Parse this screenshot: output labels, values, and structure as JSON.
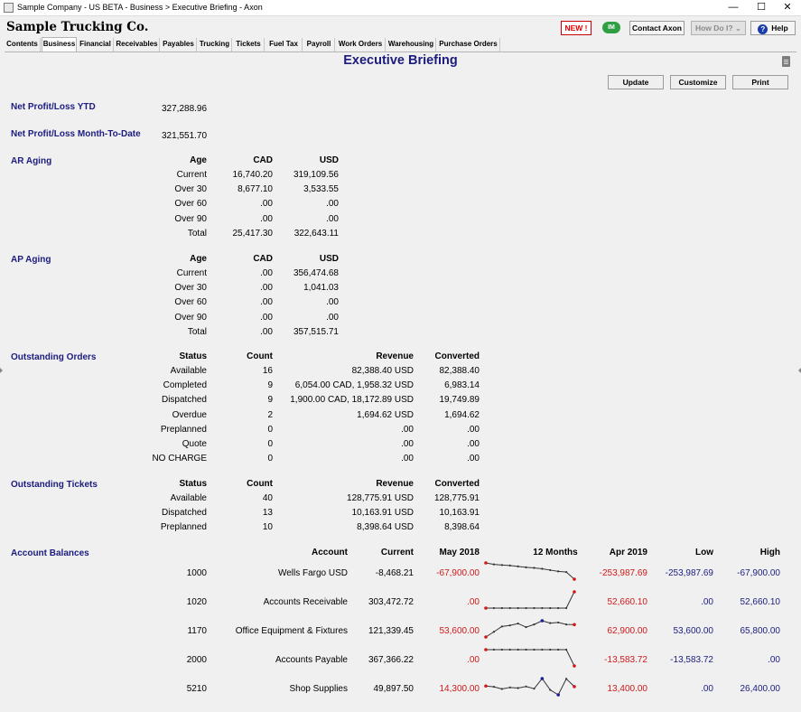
{
  "window": {
    "title": "Sample Company - US BETA - Business > Executive Briefing - Axon"
  },
  "company": "Sample Trucking Co.",
  "topbar": {
    "new_label": "NEW !",
    "im_label": "IM",
    "contact_label": "Contact Axon",
    "howdo_label": "How Do I?",
    "help_label": "Help"
  },
  "tabs": [
    "Contents",
    "Business",
    "Financial",
    "Receivables",
    "Payables",
    "Trucking",
    "Tickets",
    "Fuel Tax",
    "Payroll",
    "Work Orders",
    "Warehousing",
    "Purchase Orders"
  ],
  "active_tab": "Business",
  "page": {
    "title": "Executive Briefing",
    "update_label": "Update",
    "customize_label": "Customize",
    "print_label": "Print"
  },
  "net_ytd": {
    "label": "Net Profit/Loss YTD",
    "value": "327,288.96"
  },
  "net_mtd": {
    "label": "Net Profit/Loss Month-To-Date",
    "value": "321,551.70"
  },
  "ar_aging": {
    "label": "AR Aging",
    "headers": [
      "Age",
      "CAD",
      "USD"
    ],
    "rows": [
      [
        "Current",
        "16,740.20",
        "319,109.56"
      ],
      [
        "Over 30",
        "8,677.10",
        "3,533.55"
      ],
      [
        "Over 60",
        ".00",
        ".00"
      ],
      [
        "Over 90",
        ".00",
        ".00"
      ],
      [
        "Total",
        "25,417.30",
        "322,643.11"
      ]
    ]
  },
  "ap_aging": {
    "label": "AP Aging",
    "headers": [
      "Age",
      "CAD",
      "USD"
    ],
    "rows": [
      [
        "Current",
        ".00",
        "356,474.68"
      ],
      [
        "Over 30",
        ".00",
        "1,041.03"
      ],
      [
        "Over 60",
        ".00",
        ".00"
      ],
      [
        "Over 90",
        ".00",
        ".00"
      ],
      [
        "Total",
        ".00",
        "357,515.71"
      ]
    ]
  },
  "orders": {
    "label": "Outstanding Orders",
    "headers": [
      "Status",
      "Count",
      "Revenue",
      "Converted"
    ],
    "rows": [
      [
        "Available",
        "16",
        "82,388.40 USD",
        "82,388.40"
      ],
      [
        "Completed",
        "9",
        "6,054.00 CAD, 1,958.32 USD",
        "6,983.14"
      ],
      [
        "Dispatched",
        "9",
        "1,900.00 CAD, 18,172.89 USD",
        "19,749.89"
      ],
      [
        "Overdue",
        "2",
        "1,694.62 USD",
        "1,694.62"
      ],
      [
        "Preplanned",
        "0",
        ".00",
        ".00"
      ],
      [
        "Quote",
        "0",
        ".00",
        ".00"
      ],
      [
        "NO CHARGE",
        "0",
        ".00",
        ".00"
      ]
    ]
  },
  "tickets": {
    "label": "Outstanding Tickets",
    "headers": [
      "Status",
      "Count",
      "Revenue",
      "Converted"
    ],
    "rows": [
      [
        "Available",
        "40",
        "128,775.91 USD",
        "128,775.91"
      ],
      [
        "Dispatched",
        "13",
        "10,163.91 USD",
        "10,163.91"
      ],
      [
        "Preplanned",
        "10",
        "8,398.64 USD",
        "8,398.64"
      ]
    ]
  },
  "balances": {
    "label": "Account Balances",
    "headers": [
      "Account",
      "Current",
      "May 2018",
      "12 Months",
      "Apr 2019",
      "Low",
      "High"
    ],
    "rows": [
      {
        "num": "1000",
        "name": "Wells Fargo USD",
        "current": "-8,468.21",
        "start": "-67,900.00",
        "end": "-253,987.69",
        "low": "-253,987.69",
        "high": "-67,900.00",
        "spark": [
          -67900,
          -85000,
          -92000,
          -98000,
          -108000,
          -118000,
          -125000,
          -135000,
          -150000,
          -165000,
          -172000,
          -253987.69
        ]
      },
      {
        "num": "1020",
        "name": "Accounts Receivable",
        "current": "303,472.72",
        "start": ".00",
        "end": "52,660.10",
        "low": ".00",
        "high": "52,660.10",
        "spark": [
          0,
          0,
          0,
          0,
          0,
          0,
          0,
          0,
          0,
          0,
          0,
          52660.1
        ]
      },
      {
        "num": "1170",
        "name": "Office Equipment & Fixtures",
        "current": "121,339.45",
        "start": "53,600.00",
        "end": "62,900.00",
        "low": "53,600.00",
        "high": "65,800.00",
        "spark": [
          53600,
          57500,
          61500,
          62300,
          63700,
          61000,
          63000,
          65800,
          64000,
          64500,
          63000,
          62900
        ]
      },
      {
        "num": "2000",
        "name": "Accounts Payable",
        "current": "367,366.22",
        "start": ".00",
        "end": "-13,583.72",
        "low": "-13,583.72",
        "high": ".00",
        "spark": [
          0,
          0,
          0,
          0,
          0,
          0,
          0,
          0,
          0,
          0,
          0,
          -13583.72
        ]
      },
      {
        "num": "5210",
        "name": "Shop Supplies",
        "current": "49,897.50",
        "start": "14,300.00",
        "end": "13,400.00",
        "low": ".00",
        "high": "26,400.00",
        "spark": [
          14300,
          13000,
          9500,
          12000,
          11000,
          13500,
          10000,
          26400,
          8000,
          0,
          26000,
          13400
        ]
      }
    ]
  },
  "colors": {
    "heading": "#1c1c80",
    "negative_start": "#d01818",
    "spark_line": "#333333",
    "spark_low": "#1c1c9a",
    "spark_high": "#d01818"
  }
}
